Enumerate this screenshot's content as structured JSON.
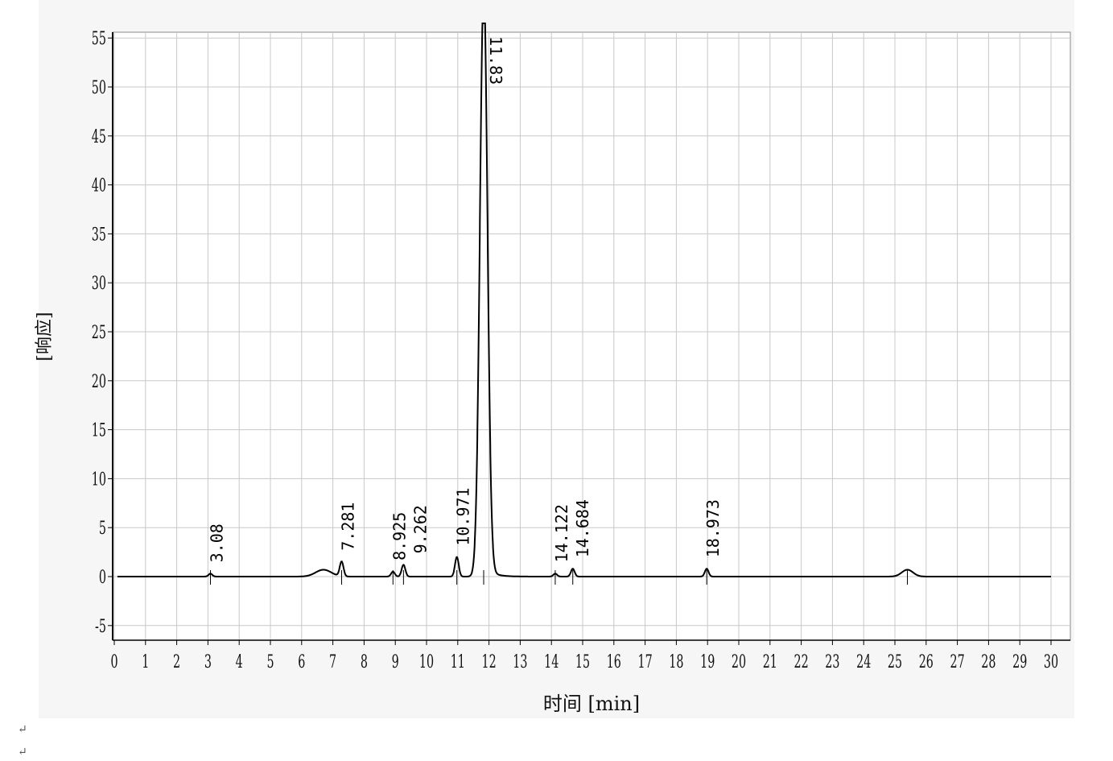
{
  "chart_data": {
    "type": "line",
    "title": "",
    "xlabel": "时间 [min]",
    "ylabel": "[响应]",
    "xlim": [
      0,
      30
    ],
    "ylim": [
      -6.5,
      55.5
    ],
    "xticks": [
      0,
      1,
      2,
      3,
      4,
      5,
      6,
      7,
      8,
      9,
      10,
      11,
      12,
      13,
      14,
      15,
      16,
      17,
      18,
      19,
      20,
      21,
      22,
      23,
      24,
      25,
      26,
      27,
      28,
      29,
      30
    ],
    "yticks": [
      -5,
      0,
      5,
      10,
      15,
      20,
      25,
      30,
      35,
      40,
      45,
      50,
      55
    ],
    "grid": true,
    "line_color": "#000000",
    "grid_color": "#c8c8c8",
    "peaks": [
      {
        "label": "3.08",
        "rt": 3.08,
        "height": 0.3
      },
      {
        "label": "7.281",
        "rt": 7.281,
        "height": 1.5
      },
      {
        "label": "8.925",
        "rt": 8.925,
        "height": 0.5
      },
      {
        "label": "9.262",
        "rt": 9.262,
        "height": 1.2
      },
      {
        "label": "10.971",
        "rt": 10.971,
        "height": 2.0
      },
      {
        "label": "11.83",
        "rt": 11.83,
        "height": 60
      },
      {
        "label": "14.122",
        "rt": 14.122,
        "height": 0.3
      },
      {
        "label": "14.684",
        "rt": 14.684,
        "height": 0.8
      },
      {
        "label": "18.973",
        "rt": 18.973,
        "height": 0.8
      },
      {
        "label": "",
        "rt": 25.4,
        "height": 0.7
      }
    ]
  },
  "footer_marks": [
    "↵",
    "↵"
  ]
}
